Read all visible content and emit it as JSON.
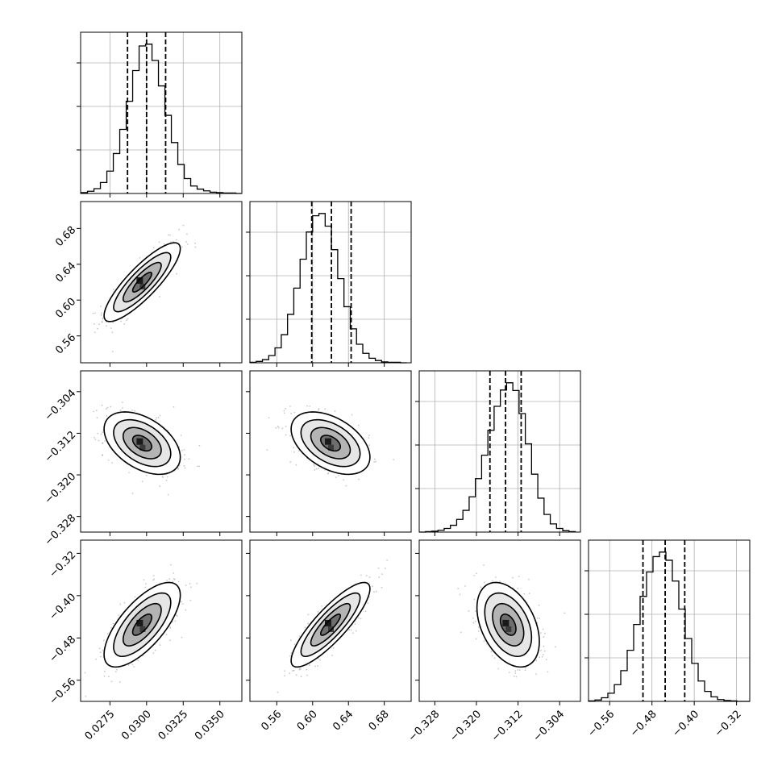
{
  "chart_data": {
    "type": "corner",
    "variables": [
      {
        "id": "p0",
        "range": [
          0.0255,
          0.0365
        ],
        "ticks": [
          "0.0275",
          "0.0300",
          "0.0325",
          "0.0350"
        ],
        "tick_values": [
          0.0275,
          0.03,
          0.0325,
          0.035
        ],
        "median": 0.03,
        "q16": 0.0287,
        "q84": 0.0313,
        "hist_bins": [
          0.02553,
          0.02597,
          0.02641,
          0.02685,
          0.02729,
          0.02773,
          0.02817,
          0.02861,
          0.02905,
          0.02949,
          0.02993,
          0.03037,
          0.03081,
          0.03125,
          0.03169,
          0.03213,
          0.03257,
          0.03301,
          0.03345,
          0.03389,
          0.03433,
          0.03477,
          0.03521,
          0.03565,
          0.03609,
          0.03653
        ],
        "hist_counts": [
          2,
          5,
          11,
          25,
          51,
          91,
          146,
          210,
          280,
          336,
          340,
          303,
          245,
          178,
          116,
          66,
          34,
          17,
          10,
          6,
          3,
          2,
          1,
          1,
          0
        ]
      },
      {
        "id": "p1",
        "range": [
          0.53,
          0.71
        ],
        "ticks": [
          "0.56",
          "0.60",
          "0.64",
          "0.68"
        ],
        "tick_values": [
          0.56,
          0.6,
          0.64,
          0.68
        ],
        "median": 0.621,
        "q16": 0.599,
        "q84": 0.643,
        "hist_bins": [
          0.53,
          0.537,
          0.544,
          0.551,
          0.558,
          0.565,
          0.572,
          0.579,
          0.586,
          0.593,
          0.6,
          0.607,
          0.614,
          0.621,
          0.628,
          0.635,
          0.642,
          0.649,
          0.656,
          0.663,
          0.67,
          0.677,
          0.684,
          0.691,
          0.698,
          0.705
        ],
        "hist_counts": [
          1,
          3,
          7,
          16,
          33,
          62,
          107,
          165,
          229,
          289,
          325,
          330,
          302,
          250,
          186,
          124,
          75,
          41,
          21,
          10,
          5,
          2,
          1,
          1,
          0
        ]
      },
      {
        "id": "p2",
        "range": [
          -0.331,
          -0.3
        ],
        "ticks": [
          "−0.328",
          "−0.320",
          "−0.312",
          "−0.304"
        ],
        "tick_values": [
          -0.328,
          -0.32,
          -0.312,
          -0.304
        ],
        "median": -0.3144,
        "q16": -0.3174,
        "q84": -0.3114,
        "hist_bins": [
          -0.331,
          -0.3298,
          -0.3286,
          -0.3274,
          -0.3262,
          -0.325,
          -0.3238,
          -0.3226,
          -0.3214,
          -0.3202,
          -0.319,
          -0.3178,
          -0.3166,
          -0.3154,
          -0.3142,
          -0.313,
          -0.3118,
          -0.3106,
          -0.3094,
          -0.3082,
          -0.307,
          -0.3058,
          -0.3046,
          -0.3034,
          -0.3022,
          -0.301
        ],
        "hist_counts": [
          0,
          1,
          2,
          4,
          8,
          15,
          28,
          48,
          78,
          118,
          170,
          225,
          278,
          314,
          330,
          313,
          262,
          195,
          128,
          75,
          39,
          18,
          8,
          3,
          1
        ]
      },
      {
        "id": "p3",
        "range": [
          -0.6,
          -0.295
        ],
        "ticks": [
          "−0.56",
          "−0.48",
          "−0.40",
          "−0.32"
        ],
        "tick_values": [
          -0.56,
          -0.48,
          -0.4,
          -0.32
        ],
        "median": -0.455,
        "q16": -0.497,
        "q84": -0.418,
        "hist_bins": [
          -0.6,
          -0.5878,
          -0.5756,
          -0.5634,
          -0.5512,
          -0.539,
          -0.5268,
          -0.5146,
          -0.5024,
          -0.4902,
          -0.478,
          -0.4658,
          -0.4536,
          -0.4414,
          -0.4292,
          -0.417,
          -0.4048,
          -0.3926,
          -0.3804,
          -0.3682,
          -0.356,
          -0.3438,
          -0.3316,
          -0.3194,
          -0.3072,
          -0.295
        ],
        "hist_counts": [
          1,
          3,
          8,
          18,
          37,
          68,
          113,
          170,
          232,
          286,
          320,
          330,
          312,
          266,
          204,
          139,
          84,
          45,
          22,
          10,
          4,
          2,
          1,
          0,
          0
        ]
      }
    ],
    "pairs": [
      {
        "row": 1,
        "col": 0,
        "center": [
          0.0297,
          0.62
        ],
        "sigma": [
          0.0013,
          0.022
        ],
        "rho": 0.85
      },
      {
        "row": 2,
        "col": 0,
        "center": [
          0.0297,
          -0.3139
        ],
        "sigma": [
          0.0013,
          0.003
        ],
        "rho": -0.45
      },
      {
        "row": 2,
        "col": 1,
        "center": [
          0.62,
          -0.3139
        ],
        "sigma": [
          0.022,
          0.003
        ],
        "rho": -0.45
      },
      {
        "row": 3,
        "col": 0,
        "center": [
          0.0297,
          -0.455
        ],
        "sigma": [
          0.0013,
          0.04
        ],
        "rho": 0.7
      },
      {
        "row": 3,
        "col": 1,
        "center": [
          0.62,
          -0.455
        ],
        "sigma": [
          0.022,
          0.04
        ],
        "rho": 0.85
      },
      {
        "row": 3,
        "col": 2,
        "center": [
          -0.3139,
          -0.455
        ],
        "sigma": [
          0.003,
          0.04
        ],
        "rho": -0.4
      }
    ],
    "contour_levels_sigma": [
      0.5,
      1.0,
      1.5,
      2.0
    ],
    "scatter_points_per_panel": 450,
    "grid": true,
    "colors": {
      "hist": "#000000",
      "scatter": "#9a9a9a",
      "contour": "#000000",
      "grid": "#b0b0b0"
    }
  }
}
